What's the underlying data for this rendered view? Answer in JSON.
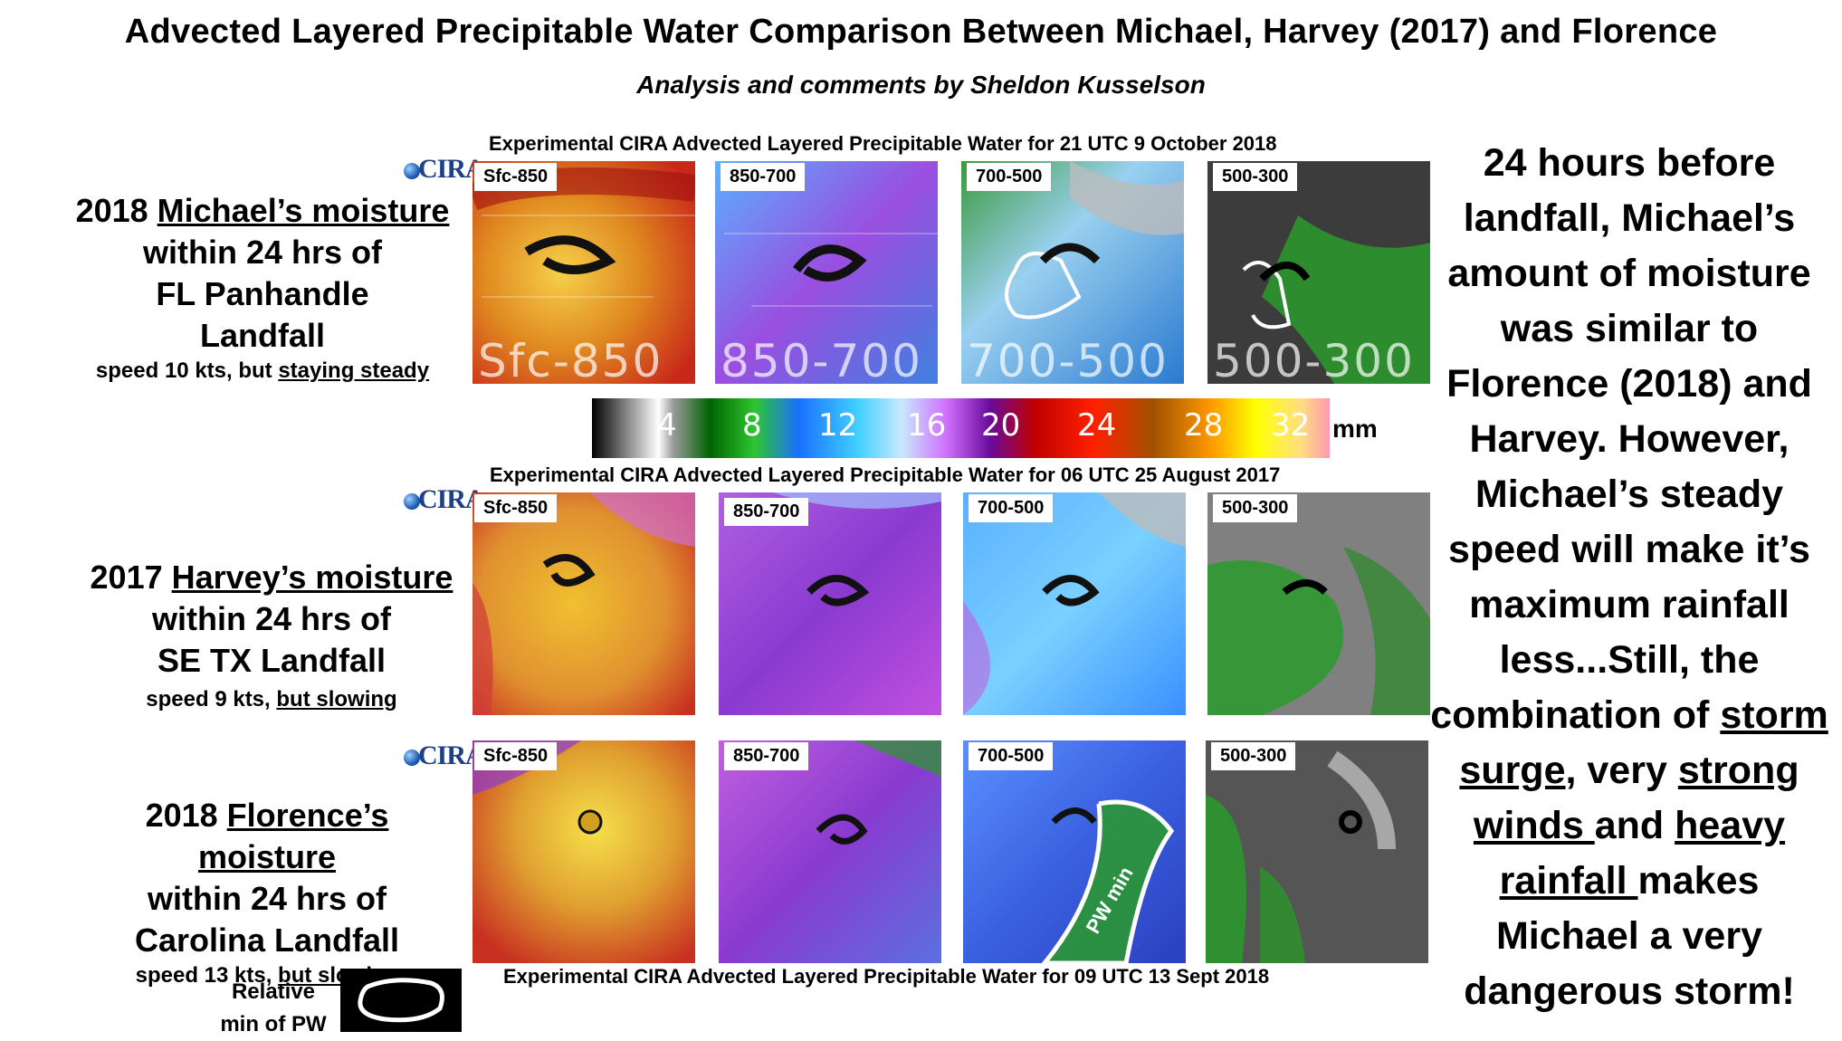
{
  "title": "Advected Layered Precipitable Water Comparison Between Michael, Harvey (2017) and Florence",
  "subtitle": "Analysis and comments by Sheldon Kusselson",
  "logo_text": "CIRA",
  "rows": [
    {
      "header": "Experimental CIRA Advected Layered Precipitable Water for 21 UTC 9 October 2018",
      "label_year": "2018 ",
      "label_name": "Michael’s moisture",
      "label_line2": "within 24 hrs of",
      "label_line3": "FL Panhandle",
      "label_line4": "Landfall",
      "speed_prefix": "speed 10 kts, but ",
      "speed_trend": "staying steady",
      "panels": [
        "Sfc-850",
        "850-700",
        "700-500",
        "500-300"
      ],
      "watermarks": [
        "Sfc-850",
        "850-700",
        "700-500",
        "500-300"
      ]
    },
    {
      "header": "Experimental CIRA Advected Layered Precipitable Water for 06 UTC 25 August 2017",
      "label_year": "2017 ",
      "label_name": "Harvey’s moisture",
      "label_line2": "within 24 hrs of",
      "label_line3": "SE TX Landfall",
      "label_line4": "",
      "speed_prefix": "speed 9 kts, ",
      "speed_trend": "but slowing",
      "panels": [
        "Sfc-850",
        "850-700",
        "700-500",
        "500-300"
      ]
    },
    {
      "header": "Experimental CIRA Advected Layered Precipitable Water for 09 UTC 13 Sept 2018",
      "label_year": "2018 ",
      "label_name": "Florence’s moisture",
      "label_line2": "within 24 hrs of",
      "label_line3": "Carolina Landfall",
      "label_line4": "",
      "speed_prefix": "speed 13 kts, ",
      "speed_trend": "but slowing",
      "panels": [
        "Sfc-850",
        "850-700",
        "700-500",
        "500-300"
      ],
      "annotation": "PW min"
    }
  ],
  "colorbar": {
    "ticks": [
      "4",
      "8",
      "12",
      "16",
      "20",
      "24",
      "28",
      "32"
    ],
    "unit": "mm"
  },
  "right_text": {
    "p1": "24 hours before landfall, Michael’s amount of moisture was similar to Florence (2018) and Harvey.  However, Michael’s steady speed will make it’s maximum rainfall less...Still, the combination of",
    "u1": "storm surge",
    "p2": ", very",
    "u2": "strong winds ",
    "p3": "and",
    "u3": "heavy rainfall ",
    "p4": "makes Michael a very dangerous storm!"
  },
  "legend": {
    "label": "Relative min of PW"
  }
}
